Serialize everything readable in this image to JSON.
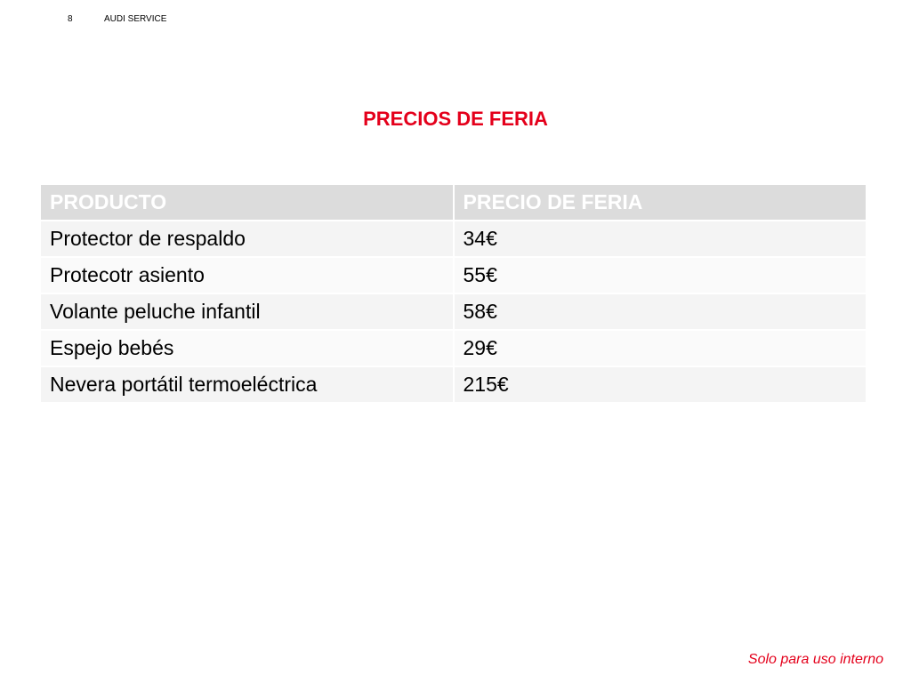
{
  "header": {
    "page_number": "8",
    "brand": "AUDI SERVICE"
  },
  "title": "PRECIOS DE FERIA",
  "table": {
    "columns": [
      "PRODUCTO",
      "PRECIO DE FERIA"
    ],
    "rows": [
      {
        "product": "Protector de respaldo",
        "price": "34€"
      },
      {
        "product": "Protecotr asiento",
        "price": "55€"
      },
      {
        "product": "Volante peluche infantil",
        "price": "58€"
      },
      {
        "product": "Espejo bebés",
        "price": "29€"
      },
      {
        "product": "Nevera portátil termoeléctrica",
        "price": "215€"
      }
    ]
  },
  "footer": {
    "note": "Solo para uso interno"
  },
  "colors": {
    "accent": "#e4001b",
    "header_fill": "#dcdcdc",
    "row_fill_odd": "#f4f4f4",
    "row_fill_even": "#fafafa"
  }
}
